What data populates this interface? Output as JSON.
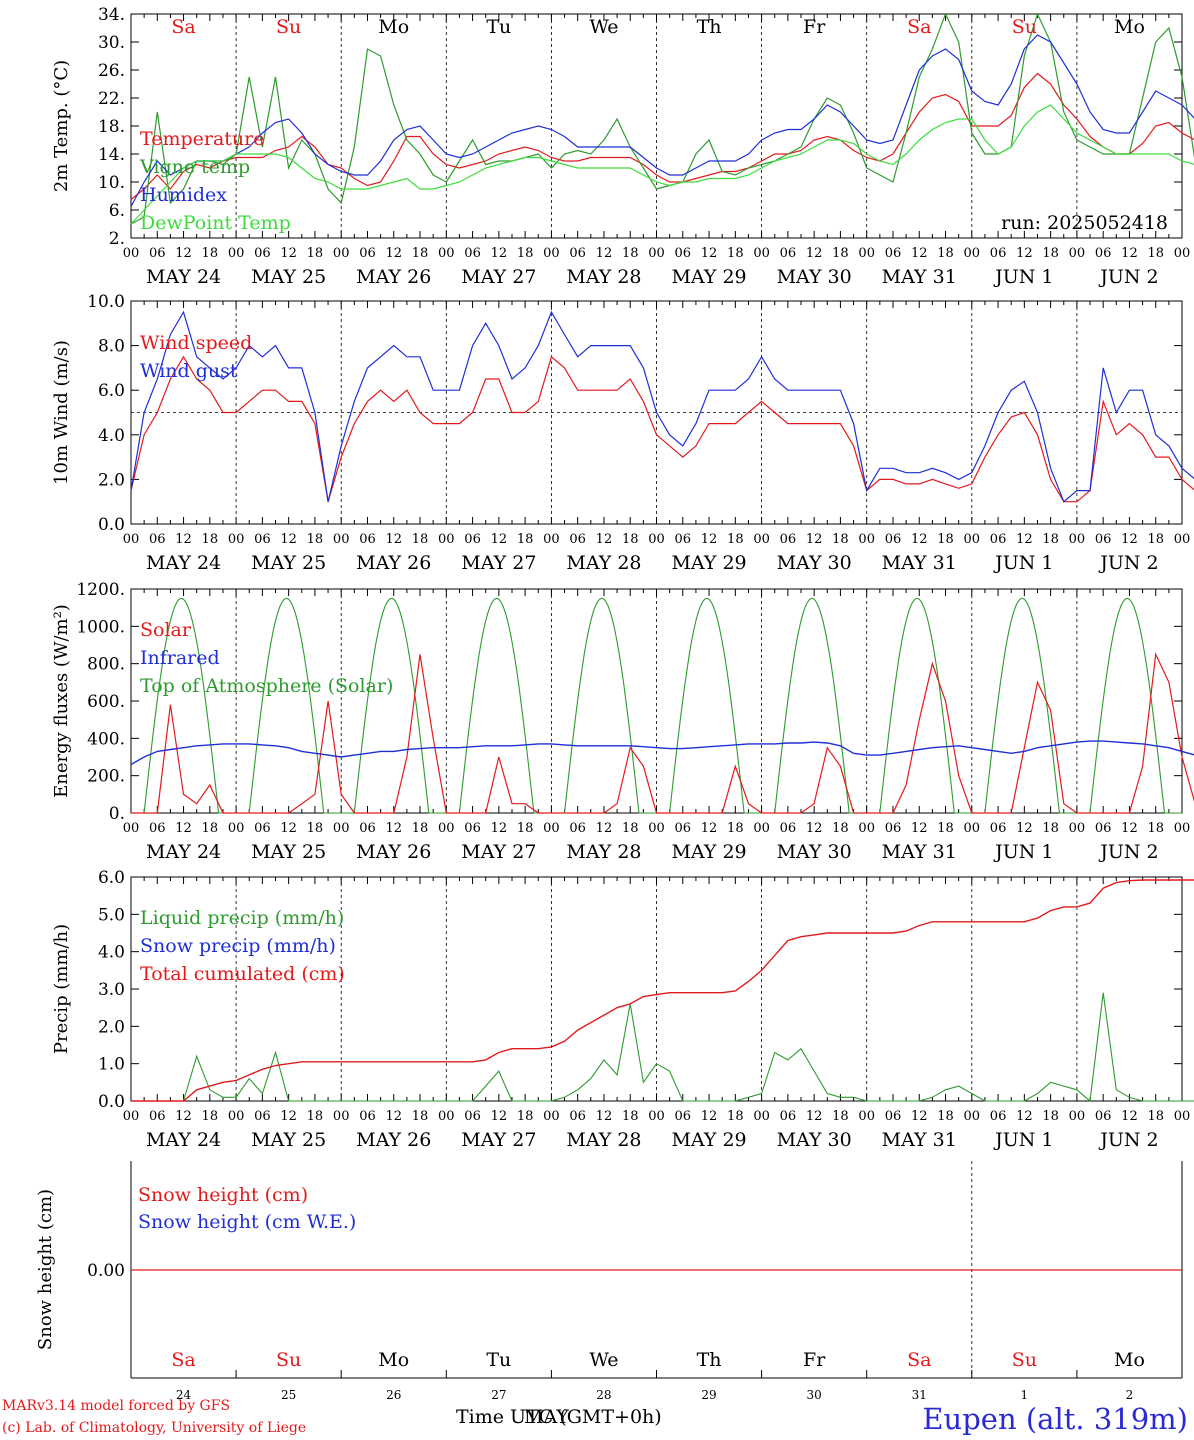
{
  "colors": {
    "red": "#e31a1c",
    "green": "#2f9a2f",
    "blue": "#1f2fd6",
    "lightgreen": "#3cdc3c",
    "axis": "#000000"
  },
  "day_names": [
    "Sa",
    "Su",
    "Mo",
    "Tu",
    "We",
    "Th",
    "Fr",
    "Sa",
    "Su",
    "Mo"
  ],
  "weekend_flags": [
    true,
    true,
    false,
    false,
    false,
    false,
    false,
    true,
    true,
    false
  ],
  "date_labels": [
    "MAY 24",
    "MAY 25",
    "MAY 26",
    "MAY 27",
    "MAY 28",
    "MAY 29",
    "MAY 30",
    "MAY 31",
    "JUN  1",
    "JUN  2"
  ],
  "hour_ticks": [
    "00",
    "06",
    "12",
    "18"
  ],
  "hour_end_tick": "00",
  "bottom_day_numbers": [
    "24",
    "25",
    "26",
    "27",
    "28",
    "29",
    "30",
    "31",
    "1",
    "2"
  ],
  "footer": {
    "credit_line1": "MARv3.14 model forced by GFS",
    "credit_line2": "(c) Lab. of Climatology, University of Liege",
    "time_label_a": "Time UTC (GMT+0h)",
    "time_label_b": "MAY",
    "station": "Eupen (alt. 319m)"
  },
  "chart_data": [
    {
      "type": "line",
      "ylabel": "2m Temp. (°C)",
      "ylim": [
        2,
        34
      ],
      "yticks": [
        "2.",
        "6.",
        "10.",
        "14.",
        "18.",
        "22.",
        "26.",
        "30.",
        "34."
      ],
      "annotation": "run: 2025052418",
      "x_unit": "hours since MAY 24 00 UTC, 3-hourly",
      "series": [
        {
          "name": "Temperature",
          "color": "red",
          "values": [
            7.5,
            9,
            11,
            9,
            11.5,
            12.5,
            12,
            13,
            13.5,
            13.5,
            13.5,
            14.5,
            15,
            16.5,
            15,
            12.5,
            12,
            10.5,
            9.5,
            10,
            13,
            16.5,
            16.5,
            14,
            12.5,
            12,
            12.5,
            13,
            14,
            14.5,
            15,
            14.5,
            13.5,
            13,
            13,
            13.5,
            13.5,
            13.5,
            13.5,
            12.5,
            11,
            10,
            10,
            10.5,
            11,
            11.5,
            11.5,
            12,
            13,
            14,
            14,
            14.5,
            16,
            16.5,
            16,
            14.5,
            13.5,
            13,
            14,
            17,
            20,
            22,
            22.5,
            21.5,
            18,
            18,
            18,
            19.5,
            23.5,
            25.5,
            24,
            21,
            19,
            16.5,
            15,
            14,
            14,
            15.5,
            18,
            18.5,
            17,
            16,
            14
          ]
        },
        {
          "name": "Vigne temp",
          "color": "green",
          "values": [
            4,
            5,
            20,
            7,
            9,
            13,
            13,
            12.5,
            14,
            25,
            15,
            25,
            12,
            16,
            14,
            9,
            7,
            15,
            29,
            28,
            21,
            16,
            14,
            11,
            10,
            13,
            16,
            12.5,
            13,
            13,
            13.5,
            14,
            12,
            14,
            14.5,
            14,
            16,
            19,
            15,
            12,
            9,
            9.5,
            10,
            14,
            16,
            11.5,
            11,
            12,
            12.5,
            13,
            14,
            15,
            19,
            22,
            21,
            17,
            12,
            11,
            10,
            17,
            25,
            29,
            35,
            30,
            17,
            14,
            14,
            15,
            28,
            35,
            30,
            20,
            16,
            15,
            14,
            14,
            14,
            22,
            30,
            32,
            25,
            13,
            10
          ]
        },
        {
          "name": "Humidex",
          "color": "blue",
          "values": [
            6.5,
            10,
            13,
            11,
            12,
            13,
            13,
            13,
            14,
            15,
            17,
            18.5,
            19,
            17,
            14,
            12.5,
            11.5,
            11,
            11,
            13,
            16,
            17.5,
            18,
            16,
            14,
            13.5,
            14,
            15,
            16,
            17,
            17.5,
            18,
            17.5,
            16.5,
            15,
            15,
            15,
            15,
            15,
            13.5,
            12,
            11,
            11,
            12,
            13,
            13,
            13,
            14,
            16,
            17,
            17.5,
            17.5,
            19,
            21,
            20,
            18,
            16,
            15.5,
            16,
            21,
            26,
            28,
            29,
            27.5,
            23,
            21.5,
            21,
            24,
            29,
            31,
            30,
            27,
            24,
            20,
            17.5,
            17,
            17,
            20,
            23,
            22,
            21,
            19,
            16
          ]
        },
        {
          "name": "DewPoint Temp",
          "color": "lightgreen",
          "values": [
            4,
            6,
            8,
            10,
            12,
            13,
            13,
            13,
            14,
            14,
            14,
            14,
            13.5,
            12,
            10.5,
            10,
            9,
            9,
            9,
            9.5,
            10,
            10.5,
            9,
            9,
            9.5,
            10,
            11,
            12,
            12.5,
            13,
            13.5,
            13.5,
            13,
            12.5,
            12,
            12,
            12,
            12,
            12,
            11,
            10,
            9.5,
            10,
            10,
            10.5,
            10.5,
            10.5,
            11,
            12,
            13,
            13.5,
            14,
            15,
            16,
            16,
            15.5,
            14,
            13,
            12.5,
            14,
            16,
            17.5,
            18.5,
            19,
            19,
            16,
            14,
            15,
            18,
            20,
            21,
            19,
            17,
            16,
            15,
            14,
            14,
            14,
            14,
            14,
            13,
            12.5,
            12.5
          ]
        }
      ]
    },
    {
      "type": "line",
      "ylabel": "10m Wind (m/s)",
      "ylim": [
        0,
        10
      ],
      "yticks": [
        "0.0",
        "2.0",
        "4.0",
        "6.0",
        "8.0",
        "10.0"
      ],
      "reference_line": 5,
      "series": [
        {
          "name": "Wind speed",
          "color": "red",
          "values": [
            1.5,
            4,
            5,
            6.5,
            7.5,
            6.5,
            6,
            5,
            5,
            5.5,
            6,
            6,
            5.5,
            5.5,
            4.5,
            1,
            3,
            4.5,
            5.5,
            6,
            5.5,
            6,
            5,
            4.5,
            4.5,
            4.5,
            5,
            6.5,
            6.5,
            5,
            5,
            5.5,
            7.5,
            7,
            6,
            6,
            6,
            6,
            6.5,
            5.5,
            4,
            3.5,
            3,
            3.5,
            4.5,
            4.5,
            4.5,
            5,
            5.5,
            5,
            4.5,
            4.5,
            4.5,
            4.5,
            4.5,
            3.5,
            1.5,
            2,
            2,
            1.8,
            1.8,
            2,
            1.8,
            1.6,
            1.8,
            3,
            4,
            4.8,
            5,
            4,
            2,
            1,
            1,
            1.5,
            5.5,
            4,
            4.5,
            4,
            3,
            3,
            2,
            1.5,
            1.5
          ]
        },
        {
          "name": "Wind gust",
          "color": "blue",
          "values": [
            1.5,
            5,
            6.5,
            8.5,
            9.5,
            7.5,
            7,
            6.5,
            7,
            8,
            7.5,
            8,
            7,
            7,
            5,
            1,
            3.5,
            5.5,
            7,
            7.5,
            8,
            7.5,
            7.5,
            6,
            6,
            6,
            8,
            9,
            8,
            6.5,
            7,
            8,
            9.5,
            8.5,
            7.5,
            8,
            8,
            8,
            8,
            7,
            5,
            4,
            3.5,
            4.5,
            6,
            6,
            6,
            6.5,
            7.5,
            6.5,
            6,
            6,
            6,
            6,
            6,
            4.5,
            1.5,
            2.5,
            2.5,
            2.3,
            2.3,
            2.5,
            2.3,
            2,
            2.3,
            3.5,
            5,
            6,
            6.4,
            5,
            2.5,
            1,
            1.5,
            1.5,
            7,
            5,
            6,
            6,
            4,
            3.5,
            2.5,
            2,
            2.2
          ]
        }
      ]
    },
    {
      "type": "line",
      "ylabel": "Energy fluxes (W/m²)",
      "ylim": [
        0,
        1200
      ],
      "yticks": [
        "0.",
        "200.",
        "400.",
        "600.",
        "800.",
        "1000.",
        "1200."
      ],
      "series": [
        {
          "name": "Solar",
          "color": "red",
          "values": [
            0,
            0,
            0,
            580,
            100,
            50,
            150,
            0,
            0,
            0,
            0,
            0,
            0,
            50,
            100,
            600,
            100,
            0,
            0,
            0,
            0,
            300,
            850,
            400,
            0,
            0,
            0,
            0,
            300,
            50,
            50,
            0,
            0,
            0,
            0,
            0,
            0,
            50,
            350,
            250,
            0,
            0,
            0,
            0,
            0,
            0,
            250,
            50,
            0,
            0,
            0,
            0,
            50,
            350,
            250,
            0,
            0,
            0,
            0,
            150,
            500,
            800,
            600,
            200,
            0,
            0,
            0,
            0,
            350,
            700,
            550,
            50,
            0,
            0,
            0,
            0,
            0,
            250,
            850,
            700,
            300,
            50,
            0
          ],
          "note": "x positions are 2-hourly hints are embedded; values sampled 3-hourly at midday peaks"
        },
        {
          "name": "Infrared",
          "color": "blue",
          "values": [
            260,
            300,
            330,
            340,
            350,
            360,
            365,
            370,
            370,
            370,
            365,
            360,
            350,
            330,
            320,
            310,
            300,
            310,
            320,
            330,
            330,
            340,
            345,
            350,
            350,
            350,
            355,
            360,
            360,
            360,
            365,
            370,
            370,
            365,
            360,
            360,
            360,
            360,
            360,
            355,
            350,
            345,
            345,
            350,
            355,
            360,
            365,
            370,
            370,
            370,
            375,
            375,
            380,
            375,
            360,
            320,
            310,
            310,
            320,
            330,
            340,
            350,
            355,
            360,
            350,
            340,
            330,
            320,
            330,
            350,
            360,
            370,
            380,
            385,
            385,
            380,
            375,
            370,
            360,
            350,
            330,
            310,
            300
          ]
        },
        {
          "name": "Top of Atmosphere (Solar)",
          "color": "green",
          "peak": 1150,
          "sunrise_hour": 3,
          "sunset_hour": 20,
          "solar_noon_hour": 11.5
        }
      ]
    },
    {
      "type": "line",
      "ylabel": "Precip (mm/h)",
      "ylim": [
        0,
        6
      ],
      "yticks": [
        "0.0",
        "1.0",
        "2.0",
        "3.0",
        "4.0",
        "5.0",
        "6.0"
      ],
      "series": [
        {
          "name": "Liquid precip (mm/h)",
          "color": "green",
          "values": [
            0,
            0,
            0,
            0,
            0,
            1.2,
            0.3,
            0.1,
            0.1,
            0.6,
            0.2,
            1.3,
            0,
            0,
            0,
            0,
            0,
            0,
            0,
            0,
            0,
            0,
            0,
            0,
            0,
            0,
            0,
            0.4,
            0.8,
            0,
            0,
            0,
            0,
            0.1,
            0.3,
            0.6,
            1.1,
            0.7,
            2.6,
            0.5,
            1.0,
            0.8,
            0,
            0,
            0,
            0,
            0,
            0.1,
            0.2,
            1.3,
            1.1,
            1.4,
            0.8,
            0.2,
            0.1,
            0.1,
            0,
            0,
            0,
            0,
            0,
            0.1,
            0.3,
            0.4,
            0.2,
            0,
            0,
            0,
            0,
            0.2,
            0.5,
            0.4,
            0.3,
            0,
            2.9,
            0.3,
            0.1,
            0,
            0,
            0,
            0,
            0,
            0
          ]
        },
        {
          "name": "Snow precip (mm/h)",
          "color": "blue",
          "values": []
        },
        {
          "name": "Total cumulated (cm)",
          "color": "red",
          "values": [
            0,
            0,
            0,
            0,
            0,
            0.3,
            0.4,
            0.5,
            0.55,
            0.7,
            0.85,
            0.95,
            1.0,
            1.05,
            1.05,
            1.05,
            1.05,
            1.05,
            1.05,
            1.05,
            1.05,
            1.05,
            1.05,
            1.05,
            1.05,
            1.05,
            1.05,
            1.1,
            1.3,
            1.4,
            1.4,
            1.4,
            1.45,
            1.6,
            1.9,
            2.1,
            2.3,
            2.5,
            2.6,
            2.8,
            2.85,
            2.9,
            2.9,
            2.9,
            2.9,
            2.9,
            2.95,
            3.2,
            3.5,
            3.9,
            4.3,
            4.4,
            4.45,
            4.5,
            4.5,
            4.5,
            4.5,
            4.5,
            4.5,
            4.55,
            4.7,
            4.8,
            4.8,
            4.8,
            4.8,
            4.8,
            4.8,
            4.8,
            4.8,
            4.9,
            5.1,
            5.2,
            5.2,
            5.3,
            5.7,
            5.85,
            5.9,
            5.92,
            5.92,
            5.92,
            5.92,
            5.92,
            5.92
          ]
        }
      ]
    },
    {
      "type": "line",
      "ylabel": "Snow height (cm)",
      "yticks": [
        "0.00"
      ],
      "series": [
        {
          "name": "Snow height (cm)",
          "color": "red",
          "values": [
            0,
            0
          ]
        },
        {
          "name": "Snow height (cm W.E.)",
          "color": "blue",
          "values": []
        }
      ]
    }
  ]
}
